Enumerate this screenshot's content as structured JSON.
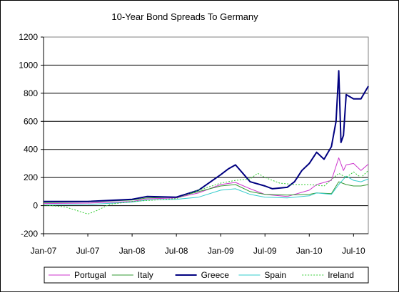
{
  "chart_data": {
    "type": "line",
    "title": "10-Year Bond Spreads To Germany",
    "xlabel": "",
    "ylabel": "",
    "ylim": [
      -200,
      1200
    ],
    "yticks": [
      -200,
      0,
      200,
      400,
      600,
      800,
      1000,
      1200
    ],
    "xlim": [
      "2007-01",
      "2010-09"
    ],
    "xticks": [
      {
        "label": "Jan-07",
        "value": "2007-01"
      },
      {
        "label": "Jul-07",
        "value": "2007-07"
      },
      {
        "label": "Jan-08",
        "value": "2008-01"
      },
      {
        "label": "Jul-08",
        "value": "2008-07"
      },
      {
        "label": "Jan-09",
        "value": "2009-01"
      },
      {
        "label": "Jul-09",
        "value": "2009-07"
      },
      {
        "label": "Jan-10",
        "value": "2010-01"
      },
      {
        "label": "Jul-10",
        "value": "2010-07"
      }
    ],
    "grid": "horizontal",
    "legend_position": "bottom",
    "series": [
      {
        "name": "Portugal",
        "color": "#cc33cc",
        "dash": "solid",
        "points": [
          [
            "2007-01",
            15
          ],
          [
            "2007-07",
            18
          ],
          [
            "2008-01",
            30
          ],
          [
            "2008-03",
            48
          ],
          [
            "2008-07",
            55
          ],
          [
            "2008-10",
            90
          ],
          [
            "2009-01",
            150
          ],
          [
            "2009-03",
            165
          ],
          [
            "2009-05",
            120
          ],
          [
            "2009-07",
            80
          ],
          [
            "2009-10",
            65
          ],
          [
            "2010-01",
            110
          ],
          [
            "2010-02",
            150
          ],
          [
            "2010-04",
            180
          ],
          [
            "2010-05",
            340
          ],
          [
            "2010-05-20",
            250
          ],
          [
            "2010-06",
            290
          ],
          [
            "2010-07",
            300
          ],
          [
            "2010-08",
            250
          ],
          [
            "2010-09",
            295
          ]
        ]
      },
      {
        "name": "Italy",
        "color": "#339933",
        "dash": "solid",
        "points": [
          [
            "2007-01",
            22
          ],
          [
            "2007-07",
            26
          ],
          [
            "2008-01",
            40
          ],
          [
            "2008-03",
            55
          ],
          [
            "2008-07",
            60
          ],
          [
            "2008-10",
            100
          ],
          [
            "2009-01",
            140
          ],
          [
            "2009-03",
            150
          ],
          [
            "2009-05",
            100
          ],
          [
            "2009-07",
            80
          ],
          [
            "2009-10",
            75
          ],
          [
            "2010-01",
            80
          ],
          [
            "2010-02",
            90
          ],
          [
            "2010-04",
            85
          ],
          [
            "2010-05",
            170
          ],
          [
            "2010-06",
            150
          ],
          [
            "2010-07",
            140
          ],
          [
            "2010-08",
            140
          ],
          [
            "2010-09",
            150
          ]
        ]
      },
      {
        "name": "Greece",
        "color": "#000080",
        "dash": "solid",
        "points": [
          [
            "2007-01",
            30
          ],
          [
            "2007-07",
            30
          ],
          [
            "2008-01",
            45
          ],
          [
            "2008-03",
            65
          ],
          [
            "2008-07",
            60
          ],
          [
            "2008-10",
            110
          ],
          [
            "2009-01",
            220
          ],
          [
            "2009-02",
            260
          ],
          [
            "2009-03",
            290
          ],
          [
            "2009-04",
            230
          ],
          [
            "2009-05",
            170
          ],
          [
            "2009-07",
            140
          ],
          [
            "2009-08",
            120
          ],
          [
            "2009-10",
            130
          ],
          [
            "2009-11",
            170
          ],
          [
            "2009-12",
            250
          ],
          [
            "2010-01",
            300
          ],
          [
            "2010-02",
            380
          ],
          [
            "2010-03",
            330
          ],
          [
            "2010-04",
            420
          ],
          [
            "2010-04-20",
            600
          ],
          [
            "2010-05",
            960
          ],
          [
            "2010-05-10",
            450
          ],
          [
            "2010-05-20",
            500
          ],
          [
            "2010-06",
            790
          ],
          [
            "2010-07",
            760
          ],
          [
            "2010-08",
            760
          ],
          [
            "2010-09",
            850
          ]
        ]
      },
      {
        "name": "Spain",
        "color": "#33cccc",
        "dash": "solid",
        "points": [
          [
            "2007-01",
            5
          ],
          [
            "2007-07",
            8
          ],
          [
            "2008-01",
            25
          ],
          [
            "2008-03",
            40
          ],
          [
            "2008-07",
            45
          ],
          [
            "2008-10",
            60
          ],
          [
            "2009-01",
            110
          ],
          [
            "2009-03",
            120
          ],
          [
            "2009-05",
            80
          ],
          [
            "2009-07",
            60
          ],
          [
            "2009-10",
            55
          ],
          [
            "2010-01",
            70
          ],
          [
            "2010-02",
            90
          ],
          [
            "2010-04",
            80
          ],
          [
            "2010-05",
            150
          ],
          [
            "2010-06",
            210
          ],
          [
            "2010-07",
            180
          ],
          [
            "2010-08",
            170
          ],
          [
            "2010-09",
            190
          ]
        ]
      },
      {
        "name": "Ireland",
        "color": "#33cc33",
        "dash": "dotted",
        "points": [
          [
            "2007-01",
            5
          ],
          [
            "2007-04",
            -10
          ],
          [
            "2007-07",
            -60
          ],
          [
            "2007-08",
            -40
          ],
          [
            "2007-10",
            10
          ],
          [
            "2008-01",
            30
          ],
          [
            "2008-07",
            50
          ],
          [
            "2008-10",
            110
          ],
          [
            "2009-01",
            160
          ],
          [
            "2009-03",
            180
          ],
          [
            "2009-05",
            190
          ],
          [
            "2009-06",
            230
          ],
          [
            "2009-07",
            200
          ],
          [
            "2009-09",
            160
          ],
          [
            "2009-11",
            150
          ],
          [
            "2010-01",
            150
          ],
          [
            "2010-03",
            140
          ],
          [
            "2010-05",
            230
          ],
          [
            "2010-06",
            200
          ],
          [
            "2010-07",
            240
          ],
          [
            "2010-08",
            200
          ],
          [
            "2010-09",
            250
          ]
        ]
      }
    ]
  }
}
